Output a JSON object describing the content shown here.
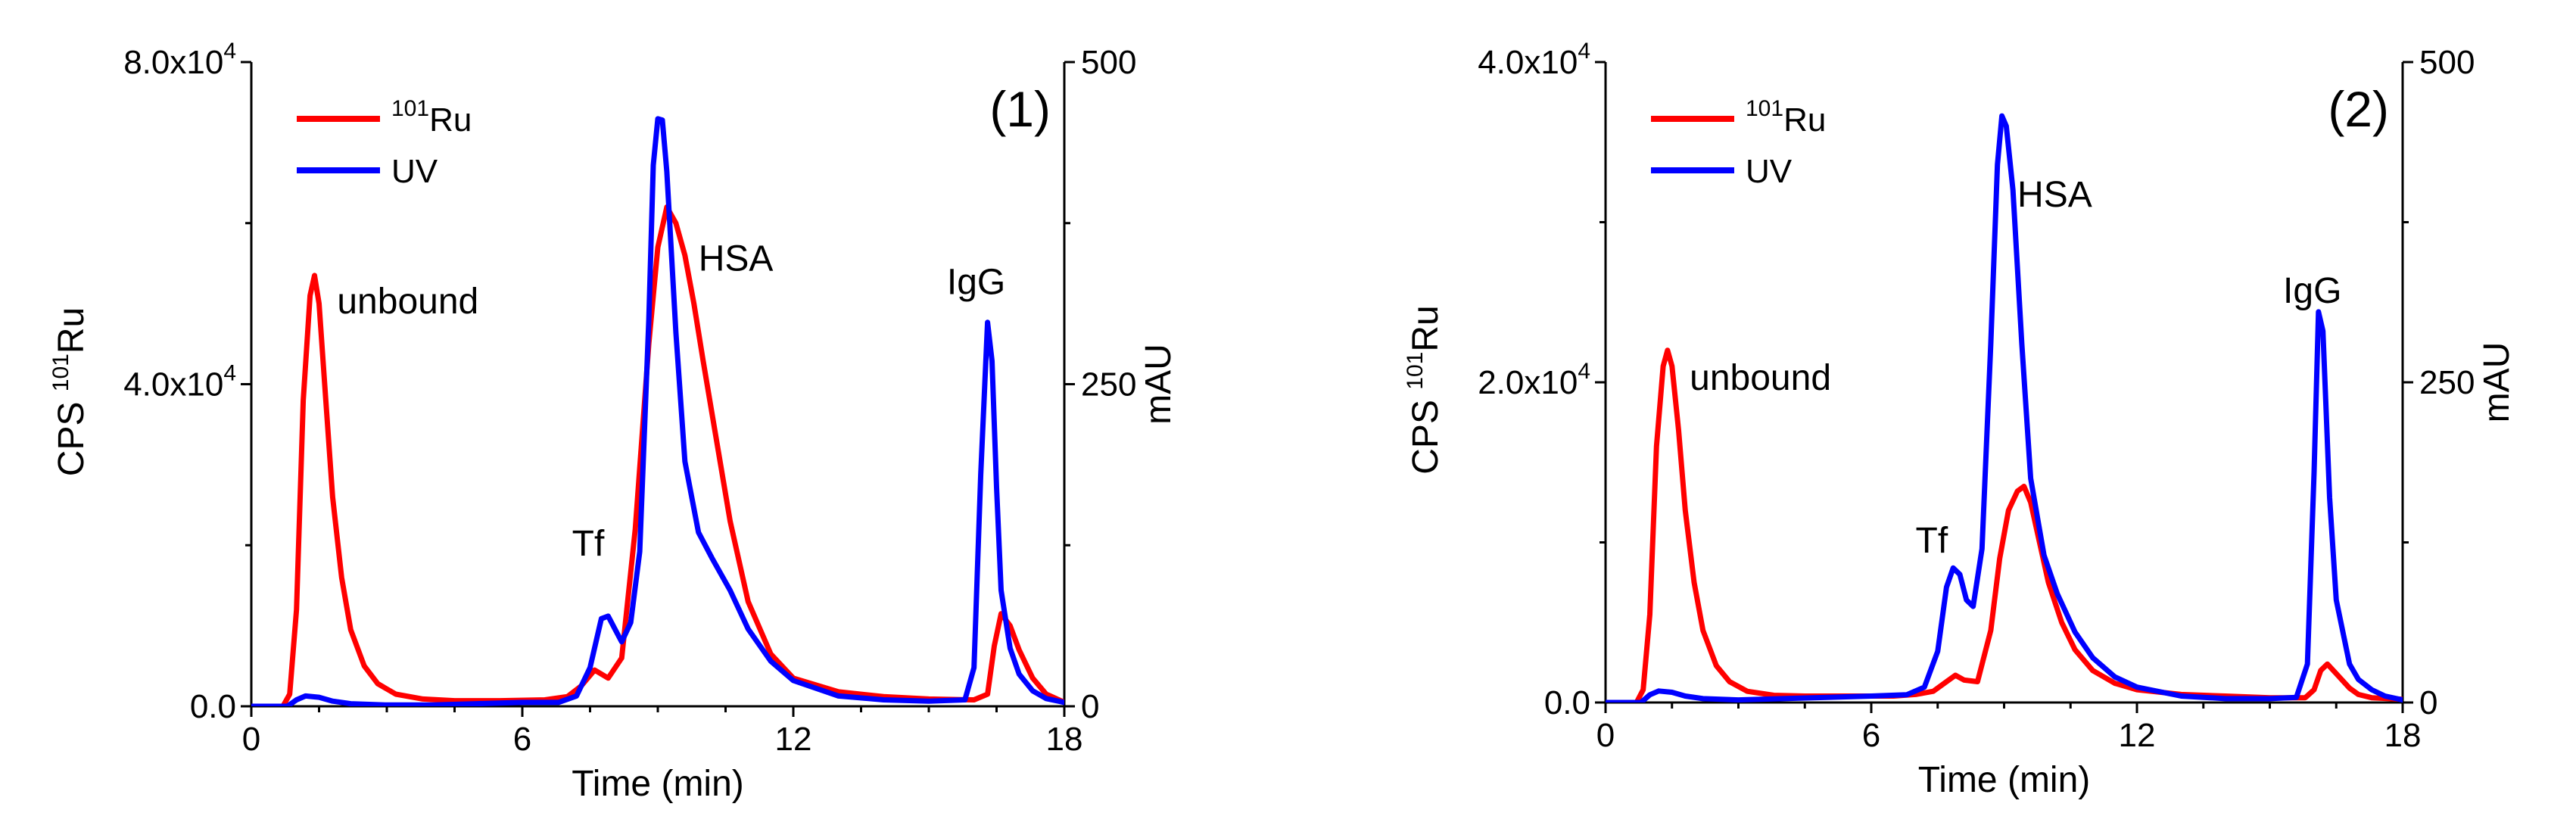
{
  "chart_data": [
    {
      "type": "line",
      "panel_label": "(1)",
      "xlabel": "Time (min)",
      "xlim": [
        0,
        18
      ],
      "x_ticks": [
        0,
        6,
        12,
        18
      ],
      "x_tick_labels": [
        "0",
        "6",
        "12",
        "18"
      ],
      "ylabel_left": {
        "main": "CPS",
        "sup": "101",
        "element": "Ru"
      },
      "ylim_left": [
        0,
        80000
      ],
      "y_left_tick_labels": [
        {
          "value": 0,
          "mant": "0.0",
          "exp": ""
        },
        {
          "value": 40000,
          "mant": "4.0x10",
          "exp": "4"
        },
        {
          "value": 80000,
          "mant": "8.0x10",
          "exp": "4"
        }
      ],
      "ylabel_right": "mAU",
      "ylim_right": [
        0,
        500
      ],
      "y_right_ticks": [
        0,
        250,
        500
      ],
      "y_right_tick_labels": [
        "0",
        "250",
        "500"
      ],
      "legend": [
        {
          "name": "Ru",
          "sup": "101",
          "color": "#ff0000"
        },
        {
          "name": "UV",
          "sup": "",
          "color": "#0000ff"
        }
      ],
      "annotations": [
        {
          "text": "unbound",
          "x": 1.9,
          "y_right": 305
        },
        {
          "text": "Tf",
          "x": 7.1,
          "y_right": 117
        },
        {
          "text": "HSA",
          "x": 9.9,
          "y_right": 338
        },
        {
          "text": "IgG",
          "x": 15.4,
          "y_right": 320
        }
      ],
      "series": [
        {
          "name": "101Ru",
          "axis": "left",
          "color": "#ff0000",
          "x": [
            0,
            0.7,
            0.85,
            1.0,
            1.15,
            1.3,
            1.4,
            1.5,
            1.65,
            1.8,
            2.0,
            2.2,
            2.5,
            2.8,
            3.2,
            3.8,
            4.5,
            5.5,
            6.5,
            7.0,
            7.3,
            7.6,
            7.9,
            8.2,
            8.5,
            8.8,
            9.0,
            9.2,
            9.4,
            9.6,
            9.8,
            10.0,
            10.3,
            10.6,
            11.0,
            11.5,
            12.0,
            13.0,
            14.0,
            15.0,
            16.0,
            16.3,
            16.45,
            16.6,
            16.8,
            17.0,
            17.3,
            17.6,
            18.0
          ],
          "y": [
            0,
            0,
            1500,
            12000,
            38000,
            51000,
            53500,
            50000,
            38000,
            26000,
            16000,
            9500,
            5000,
            2800,
            1500,
            900,
            700,
            700,
            800,
            1200,
            2500,
            4500,
            3500,
            6000,
            22000,
            45000,
            57000,
            62000,
            60000,
            56000,
            50000,
            43000,
            33000,
            23000,
            13000,
            6500,
            3500,
            1800,
            1200,
            900,
            800,
            1500,
            7500,
            11500,
            10000,
            7000,
            3500,
            1500,
            500
          ]
        },
        {
          "name": "UV",
          "axis": "right",
          "color": "#0000ff",
          "x": [
            0,
            0.8,
            1.0,
            1.2,
            1.5,
            1.8,
            2.2,
            3.0,
            4.0,
            5.0,
            6.0,
            6.8,
            7.2,
            7.5,
            7.75,
            7.9,
            8.05,
            8.2,
            8.4,
            8.6,
            8.8,
            8.9,
            9.0,
            9.1,
            9.2,
            9.4,
            9.6,
            9.9,
            10.2,
            10.6,
            11.0,
            11.5,
            12.0,
            13.0,
            14.0,
            15.0,
            15.8,
            16.0,
            16.15,
            16.3,
            16.4,
            16.5,
            16.6,
            16.8,
            17.0,
            17.3,
            17.6,
            18.0
          ],
          "y": [
            0,
            0,
            5,
            8,
            7,
            4,
            2,
            1,
            1,
            2,
            3,
            3,
            8,
            30,
            68,
            70,
            60,
            50,
            65,
            120,
            300,
            420,
            456,
            455,
            415,
            290,
            190,
            135,
            115,
            90,
            60,
            35,
            20,
            8,
            5,
            4,
            5,
            30,
            180,
            298,
            268,
            170,
            90,
            45,
            25,
            12,
            6,
            3
          ]
        }
      ]
    },
    {
      "type": "line",
      "panel_label": "(2)",
      "xlabel": "Time (min)",
      "xlim": [
        0,
        18
      ],
      "x_ticks": [
        0,
        6,
        12,
        18
      ],
      "x_tick_labels": [
        "0",
        "6",
        "12",
        "18"
      ],
      "ylabel_left": {
        "main": "CPS",
        "sup": "101",
        "element": "Ru"
      },
      "ylim_left": [
        0,
        40000
      ],
      "y_left_tick_labels": [
        {
          "value": 0,
          "mant": "0.0",
          "exp": ""
        },
        {
          "value": 20000,
          "mant": "2.0x10",
          "exp": "4"
        },
        {
          "value": 40000,
          "mant": "4.0x10",
          "exp": "4"
        }
      ],
      "ylabel_right": "mAU",
      "ylim_right": [
        0,
        500
      ],
      "y_right_ticks": [
        0,
        250,
        500
      ],
      "y_right_tick_labels": [
        "0",
        "250",
        "500"
      ],
      "legend": [
        {
          "name": "Ru",
          "sup": "101",
          "color": "#ff0000"
        },
        {
          "name": "UV",
          "sup": "",
          "color": "#0000ff"
        }
      ],
      "annotations": [
        {
          "text": "unbound",
          "x": 1.9,
          "y_right": 244
        },
        {
          "text": "Tf",
          "x": 7.0,
          "y_right": 117
        },
        {
          "text": "HSA",
          "x": 9.3,
          "y_right": 387
        },
        {
          "text": "IgG",
          "x": 15.3,
          "y_right": 312
        }
      ],
      "series": [
        {
          "name": "101Ru",
          "axis": "left",
          "color": "#ff0000",
          "x": [
            0,
            0.7,
            0.85,
            1.0,
            1.15,
            1.3,
            1.4,
            1.5,
            1.65,
            1.8,
            2.0,
            2.2,
            2.5,
            2.8,
            3.2,
            3.8,
            4.5,
            5.5,
            6.5,
            7.0,
            7.4,
            7.7,
            7.9,
            8.1,
            8.4,
            8.7,
            8.9,
            9.1,
            9.3,
            9.45,
            9.6,
            9.8,
            10.0,
            10.3,
            10.6,
            11.0,
            11.5,
            12.0,
            13.0,
            14.0,
            15.0,
            15.8,
            16.0,
            16.15,
            16.3,
            16.5,
            16.8,
            17.0,
            17.3,
            18.0
          ],
          "y": [
            0,
            0,
            800,
            5500,
            16000,
            21000,
            22000,
            21000,
            17000,
            12000,
            7500,
            4500,
            2300,
            1300,
            700,
            450,
            400,
            400,
            400,
            500,
            700,
            1300,
            1700,
            1400,
            1300,
            4500,
            9000,
            12000,
            13200,
            13500,
            12500,
            10000,
            7500,
            5000,
            3300,
            2000,
            1200,
            800,
            500,
            400,
            300,
            300,
            800,
            2000,
            2400,
            1800,
            900,
            500,
            300,
            200
          ]
        },
        {
          "name": "UV",
          "axis": "right",
          "color": "#0000ff",
          "x": [
            0,
            0.8,
            1.0,
            1.2,
            1.5,
            1.8,
            2.2,
            3.0,
            4.0,
            5.0,
            6.0,
            6.8,
            7.2,
            7.5,
            7.7,
            7.85,
            8.0,
            8.15,
            8.3,
            8.5,
            8.7,
            8.85,
            8.95,
            9.05,
            9.2,
            9.4,
            9.6,
            9.9,
            10.2,
            10.6,
            11.0,
            11.5,
            12.0,
            13.0,
            14.0,
            15.0,
            15.6,
            15.85,
            16.0,
            16.1,
            16.2,
            16.35,
            16.5,
            16.8,
            17.0,
            17.3,
            17.6,
            18.0
          ],
          "y": [
            0,
            0,
            6,
            9,
            8,
            5,
            3,
            2,
            3,
            4,
            5,
            6,
            12,
            40,
            90,
            105,
            100,
            80,
            75,
            120,
            280,
            420,
            458,
            450,
            400,
            280,
            175,
            115,
            85,
            55,
            35,
            20,
            12,
            5,
            3,
            3,
            4,
            30,
            180,
            305,
            290,
            160,
            80,
            30,
            18,
            10,
            5,
            2
          ]
        }
      ]
    }
  ]
}
